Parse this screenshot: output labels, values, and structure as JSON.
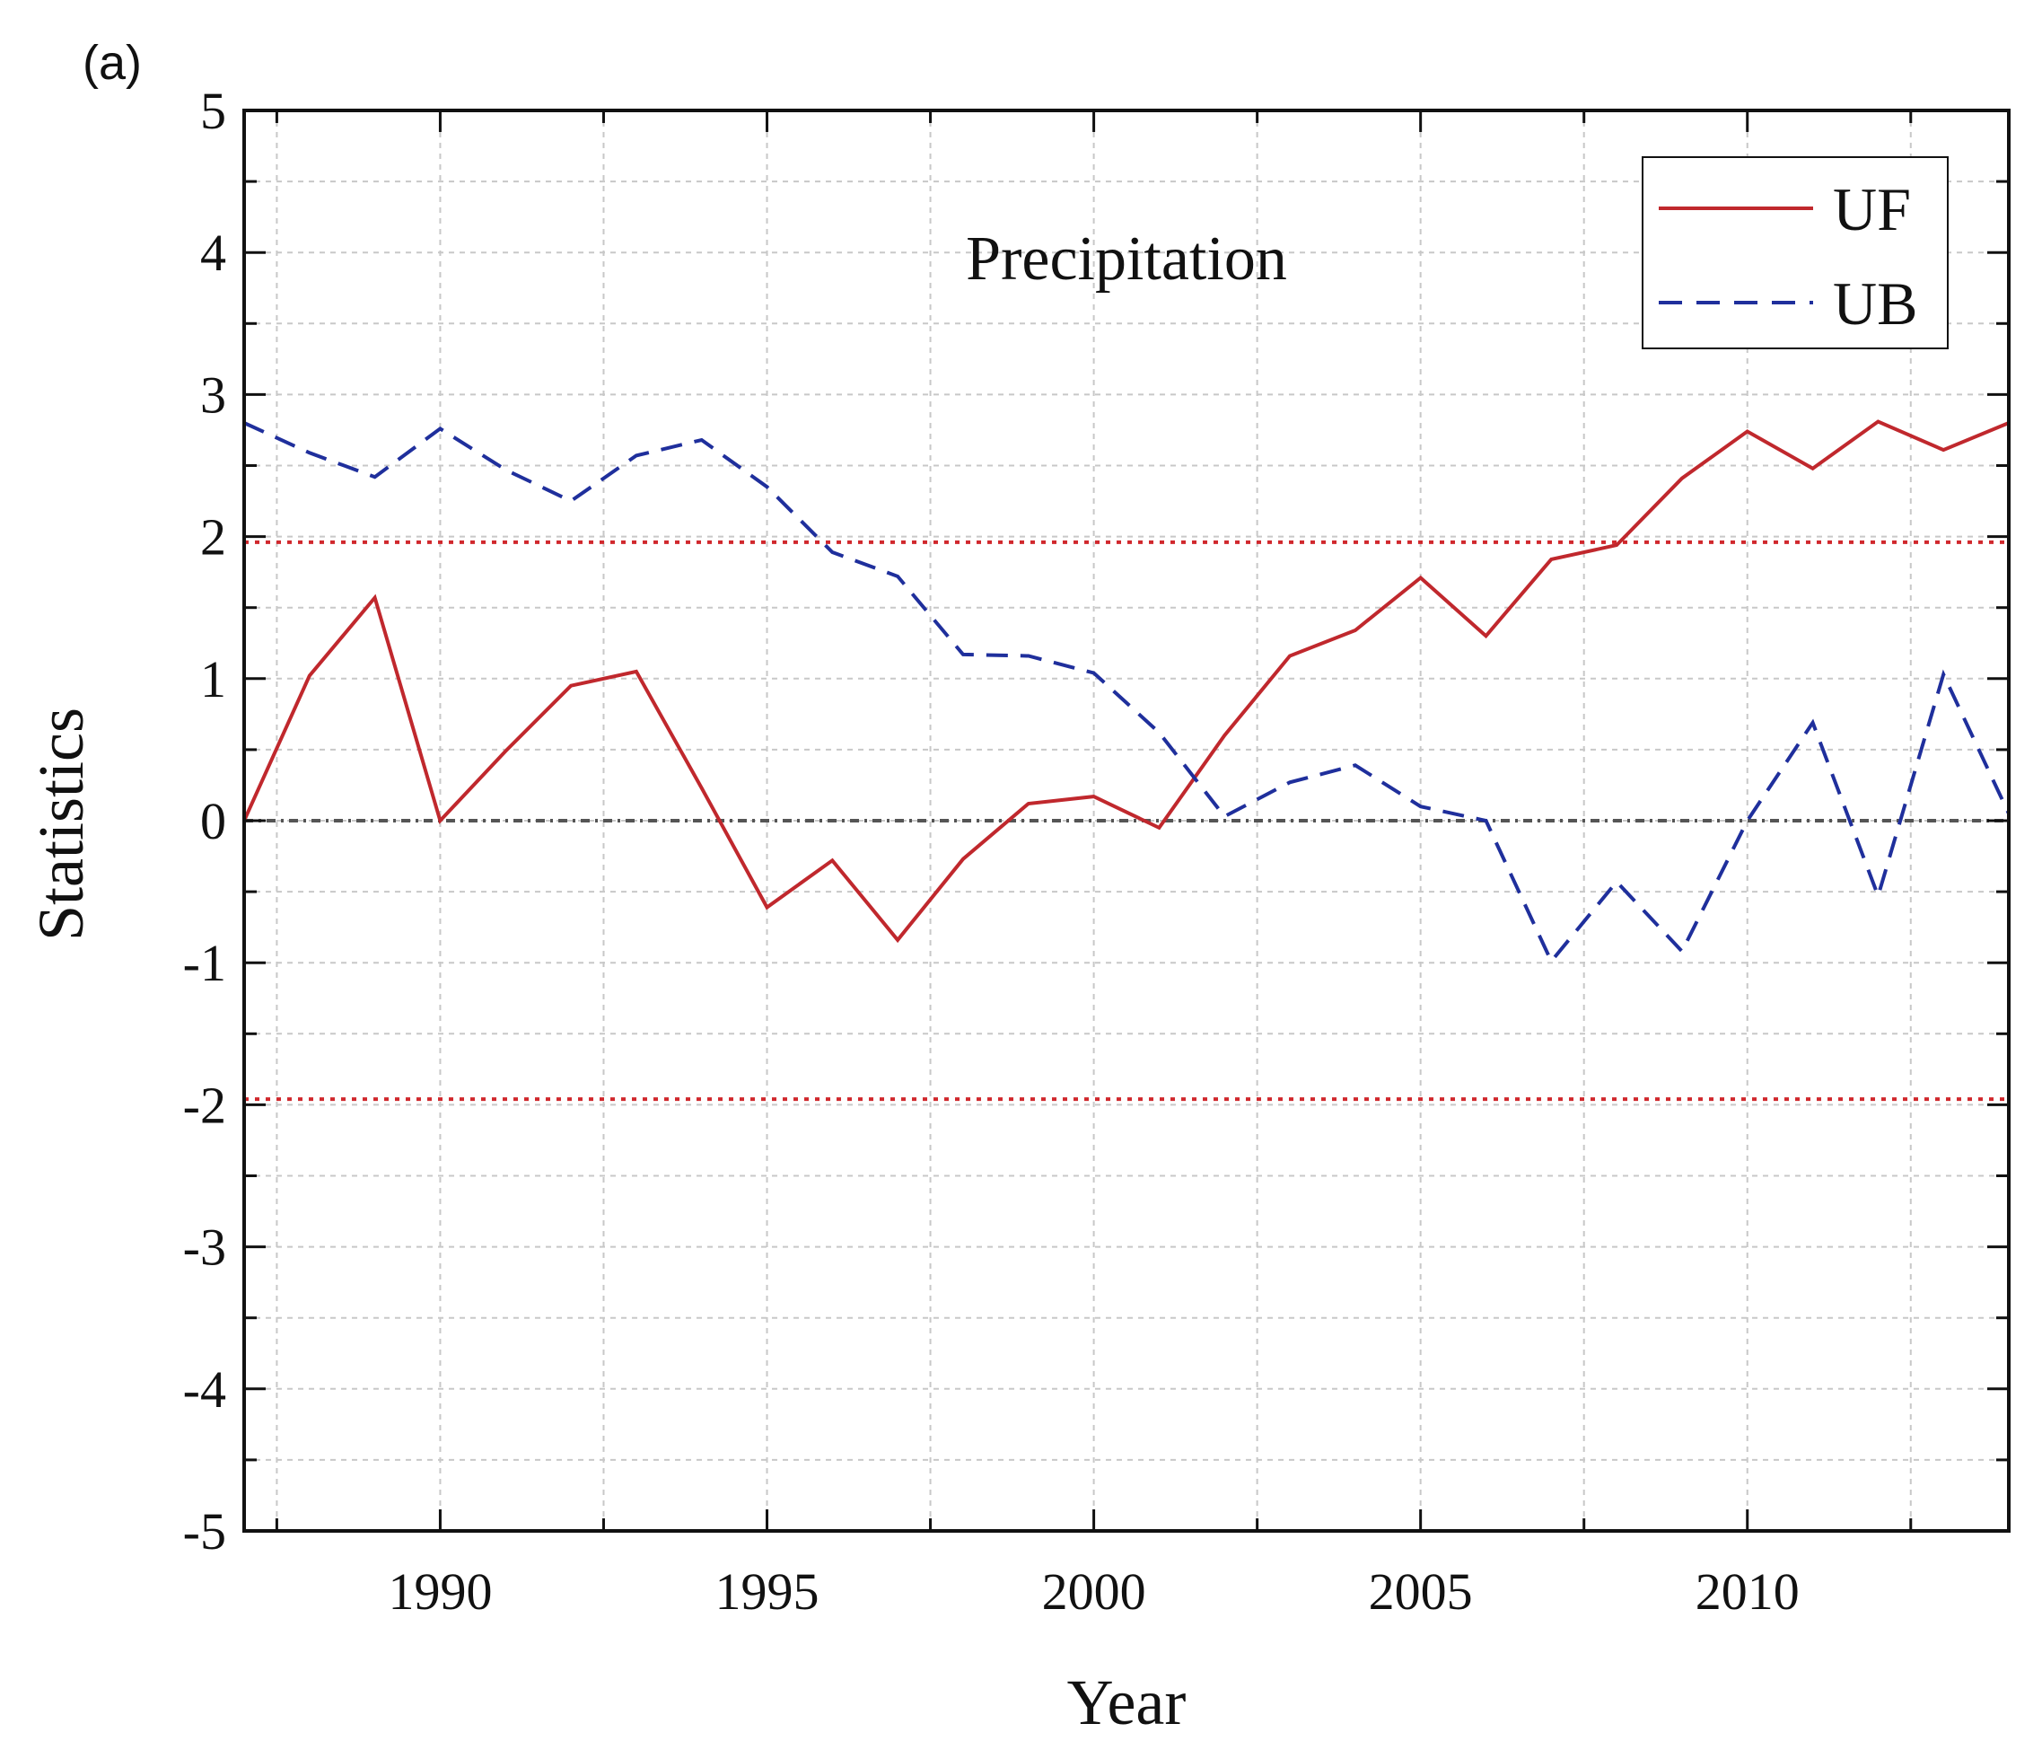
{
  "panel_label": "(a)",
  "chart_data": {
    "type": "line",
    "title": "Precipitation",
    "xlabel": "Year",
    "ylabel": "Statistics",
    "xlim": [
      1987,
      2014
    ],
    "ylim": [
      -5,
      5
    ],
    "x_ticks": [
      1990,
      1995,
      2000,
      2005,
      2010
    ],
    "x_tick_labels": [
      "1990",
      "1995",
      "2000",
      "2005",
      "2010"
    ],
    "y_ticks": [
      -5,
      -4,
      -3,
      -2,
      -1,
      0,
      1,
      2,
      3,
      4,
      5
    ],
    "y_tick_labels": [
      "-5",
      "-4",
      "-3",
      "-2",
      "-1",
      "0",
      "1",
      "2",
      "3",
      "4",
      "5"
    ],
    "grid": true,
    "legend_position": "top-right",
    "x": [
      1987,
      1988,
      1989,
      1990,
      1991,
      1992,
      1993,
      1994,
      1995,
      1996,
      1997,
      1998,
      1999,
      2000,
      2001,
      2002,
      2003,
      2004,
      2005,
      2006,
      2007,
      2008,
      2009,
      2010,
      2011,
      2012,
      2013,
      2014
    ],
    "series": [
      {
        "name": "UF",
        "color": "#c0282d",
        "style": "solid",
        "values": [
          0.0,
          1.02,
          1.57,
          0.0,
          0.49,
          0.95,
          1.05,
          0.23,
          -0.61,
          -0.28,
          -0.84,
          -0.27,
          0.12,
          0.17,
          -0.05,
          0.6,
          1.16,
          1.34,
          1.71,
          1.3,
          1.84,
          1.94,
          2.41,
          2.74,
          2.48,
          2.81,
          2.61,
          2.8
        ]
      },
      {
        "name": "UB",
        "color": "#1f2f9c",
        "style": "dashed",
        "values": [
          2.8,
          2.59,
          2.42,
          2.76,
          2.47,
          2.25,
          2.57,
          2.68,
          2.35,
          1.89,
          1.72,
          1.17,
          1.16,
          1.04,
          0.62,
          0.03,
          0.27,
          0.39,
          0.1,
          0.0,
          -0.99,
          -0.43,
          -0.92,
          0.0,
          0.69,
          -0.53,
          1.03,
          0.05
        ]
      }
    ],
    "reference_lines": [
      {
        "y": 1.96,
        "color": "#d0282d",
        "style": "dotted"
      },
      {
        "y": -1.96,
        "color": "#d0282d",
        "style": "dotted"
      },
      {
        "y": 0,
        "color": "#555555",
        "style": "dash-dot"
      }
    ]
  }
}
